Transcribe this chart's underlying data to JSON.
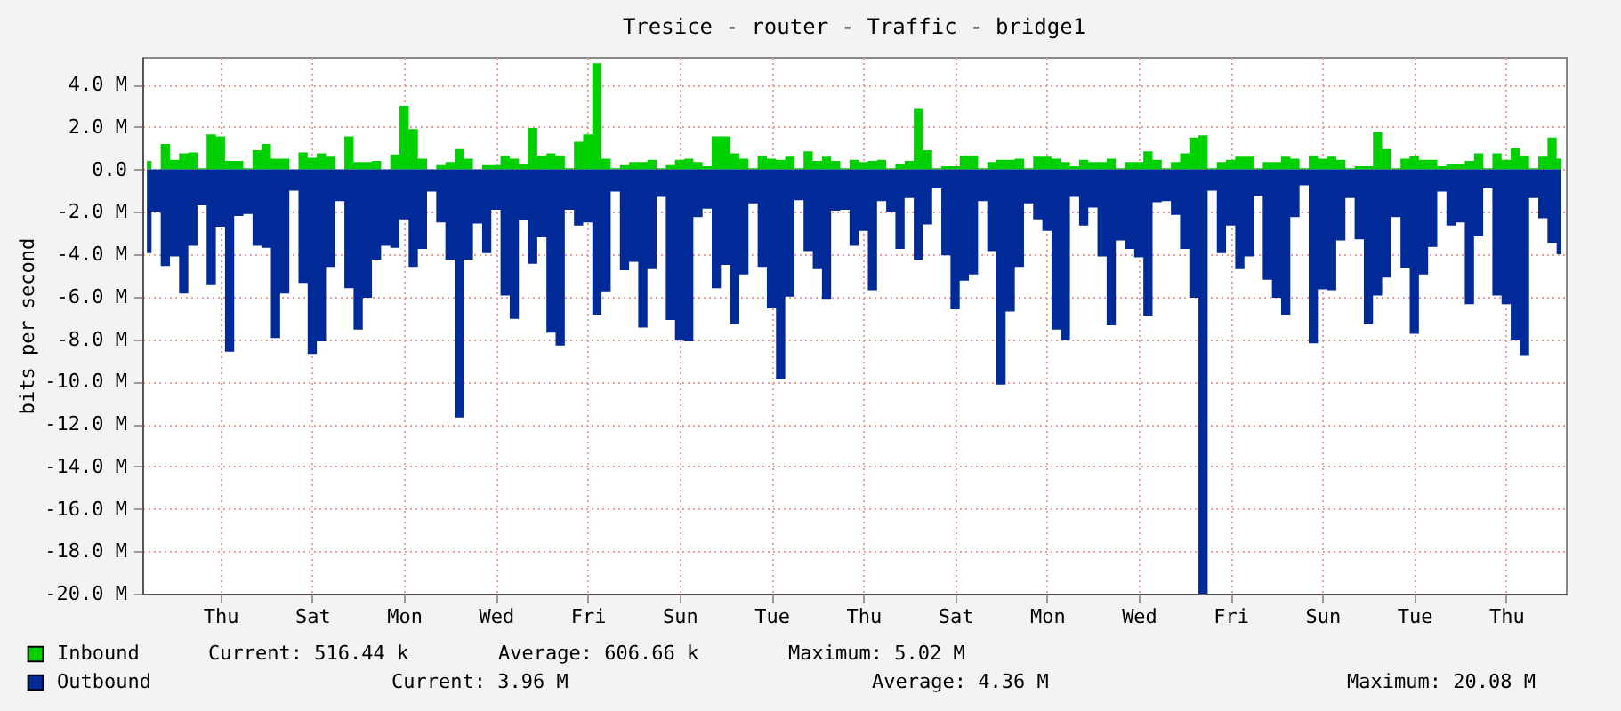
{
  "chart_data": {
    "type": "area",
    "title": "Tresice - router - Traffic - bridge1",
    "ylabel": "bits per second",
    "categories": [
      null,
      null,
      null,
      null,
      null,
      null,
      null,
      null,
      "Thu",
      null,
      null,
      null,
      null,
      null,
      null,
      null,
      null,
      null,
      "Sat",
      null,
      null,
      null,
      null,
      null,
      null,
      null,
      null,
      null,
      "Mon",
      null,
      null,
      null,
      null,
      null,
      null,
      null,
      null,
      null,
      "Wed",
      null,
      null,
      null,
      null,
      null,
      null,
      null,
      null,
      null,
      "Fri",
      null,
      null,
      null,
      null,
      null,
      null,
      null,
      null,
      null,
      "Sun",
      null,
      null,
      null,
      null,
      null,
      null,
      null,
      null,
      null,
      "Tue",
      null,
      null,
      null,
      null,
      null,
      null,
      null,
      null,
      null,
      "Thu",
      null,
      null,
      null,
      null,
      null,
      null,
      null,
      null,
      null,
      "Sat",
      null,
      null,
      null,
      null,
      null,
      null,
      null,
      null,
      null,
      "Mon",
      null,
      null,
      null,
      null,
      null,
      null,
      null,
      null,
      null,
      "Wed",
      null,
      null,
      null,
      null,
      null,
      null,
      null,
      null,
      null,
      "Fri",
      null,
      null,
      null,
      null,
      null,
      null,
      null,
      null,
      null,
      "Sun",
      null,
      null,
      null,
      null,
      null,
      null,
      null,
      null,
      null,
      "Tue",
      null,
      null,
      null,
      null,
      null,
      null,
      null,
      null,
      null,
      "Thu",
      null,
      null,
      null,
      null,
      null,
      null
    ],
    "series": [
      {
        "name": "Inbound",
        "color": "#00cf00",
        "values": [
          0.4,
          0,
          1.2,
          0.45,
          0.75,
          0.8,
          0.05,
          1.65,
          1.55,
          0.4,
          0.4,
          0.05,
          0.9,
          1.2,
          0.5,
          0.5,
          0,
          0.8,
          0.55,
          0.75,
          0.6,
          0,
          1.55,
          0.35,
          0.35,
          0.4,
          0,
          0.7,
          3.0,
          1.9,
          0.5,
          0,
          0.2,
          0.35,
          0.95,
          0.5,
          0,
          0.2,
          0.2,
          0.65,
          0.5,
          0.25,
          1.95,
          0.65,
          0.75,
          0.65,
          0.05,
          1.3,
          1.65,
          5.0,
          0.5,
          0.05,
          0.2,
          0.35,
          0.35,
          0.45,
          0.05,
          0.2,
          0.45,
          0.5,
          0.35,
          0.15,
          1.55,
          1.55,
          0.75,
          0.5,
          0.05,
          0.65,
          0.5,
          0.45,
          0.6,
          0.05,
          0.85,
          0.4,
          0.6,
          0.4,
          0.05,
          0.45,
          0.35,
          0.4,
          0.45,
          0.05,
          0.25,
          0.4,
          2.85,
          0.9,
          0.05,
          0.15,
          0.15,
          0.65,
          0.65,
          0.05,
          0.35,
          0.45,
          0.45,
          0.5,
          0.05,
          0.6,
          0.6,
          0.5,
          0.35,
          0.15,
          0.45,
          0.35,
          0.35,
          0.5,
          0.05,
          0.35,
          0.35,
          0.85,
          0.45,
          0.05,
          0.35,
          0.75,
          1.5,
          1.6,
          0.05,
          0.35,
          0.45,
          0.6,
          0.6,
          0.05,
          0.35,
          0.35,
          0.6,
          0.5,
          0.05,
          0.65,
          0.5,
          0.6,
          0.45,
          0.05,
          0.15,
          0.15,
          1.75,
          0.95,
          0.05,
          0.5,
          0.65,
          0.45,
          0.45,
          0.15,
          0.25,
          0.25,
          0.4,
          0.75,
          0.05,
          0.75,
          0.45,
          1.0,
          0.65,
          0.05,
          0.6,
          1.5,
          0.5
        ]
      },
      {
        "name": "Outbound",
        "color": "#002a97",
        "values": [
          -3.95,
          -2.0,
          -4.55,
          -4.1,
          -5.85,
          -3.6,
          -1.7,
          -5.45,
          -2.7,
          -8.6,
          -2.2,
          -2.1,
          -3.6,
          -3.7,
          -7.95,
          -5.85,
          -1.0,
          -5.35,
          -8.7,
          -8.1,
          -4.6,
          -1.5,
          -5.6,
          -7.55,
          -6.05,
          -4.25,
          -3.6,
          -3.7,
          -2.35,
          -4.6,
          -3.75,
          -1.05,
          -2.5,
          -4.25,
          -11.7,
          -4.25,
          -2.55,
          -3.95,
          -1.9,
          -5.95,
          -7.05,
          -2.4,
          -4.45,
          -3.2,
          -7.7,
          -8.3,
          -1.9,
          -2.65,
          -2.5,
          -6.85,
          -5.75,
          -1.05,
          -4.75,
          -4.35,
          -7.45,
          -4.7,
          -1.3,
          -7.1,
          -8.05,
          -8.1,
          -2.25,
          -1.85,
          -5.6,
          -4.5,
          -7.3,
          -4.95,
          -1.6,
          -4.6,
          -6.55,
          -9.9,
          -6.0,
          -1.45,
          -3.85,
          -4.7,
          -6.1,
          -1.95,
          -1.9,
          -3.6,
          -2.9,
          -5.7,
          -1.5,
          -2.0,
          -3.75,
          -1.35,
          -4.25,
          -2.6,
          -0.9,
          -4.05,
          -6.6,
          -5.25,
          -4.95,
          -1.5,
          -3.85,
          -10.15,
          -6.7,
          -4.6,
          -1.6,
          -2.35,
          -2.9,
          -7.55,
          -8.05,
          -1.3,
          -2.65,
          -1.8,
          -4.1,
          -7.35,
          -3.35,
          -3.75,
          -4.15,
          -6.9,
          -1.55,
          -1.5,
          -2.15,
          -3.75,
          -6.05,
          -20.0,
          -1.0,
          -3.95,
          -2.65,
          -4.7,
          -4.1,
          -1.25,
          -5.2,
          -6.05,
          -6.85,
          -2.25,
          -0.75,
          -8.2,
          -5.65,
          -5.7,
          -3.35,
          -1.35,
          -3.3,
          -7.3,
          -5.95,
          -5.1,
          -2.25,
          -4.65,
          -7.75,
          -4.95,
          -3.65,
          -1.05,
          -2.65,
          -2.5,
          -6.35,
          -3.15,
          -0.9,
          -5.95,
          -6.35,
          -8.05,
          -8.75,
          -1.35,
          -2.3,
          -3.45,
          -4.0
        ]
      }
    ],
    "ylim": [
      -20,
      5.3
    ],
    "yticks": [
      {
        "value": 4,
        "label": "4.0 M"
      },
      {
        "value": 2,
        "label": "2.0 M"
      },
      {
        "value": 0,
        "label": "0.0"
      },
      {
        "value": -2,
        "label": "-2.0 M"
      },
      {
        "value": -4,
        "label": "-4.0 M"
      },
      {
        "value": -6,
        "label": "-6.0 M"
      },
      {
        "value": -8,
        "label": "-8.0 M"
      },
      {
        "value": -10,
        "label": "-10.0 M"
      },
      {
        "value": -12,
        "label": "-12.0 M"
      },
      {
        "value": -14,
        "label": "-14.0 M"
      },
      {
        "value": -16,
        "label": "-16.0 M"
      },
      {
        "value": -18,
        "label": "-18.0 M"
      },
      {
        "value": -20,
        "label": "-20.0 M"
      }
    ],
    "grid": true,
    "legend": "bottom",
    "annotations": [
      "Current: 516.44 k",
      "Average: 606.66 k",
      "Maximum: 5.02 M",
      "Current: 3.96 M",
      "Average: 4.36 M",
      "Maximum: 20.08 M"
    ]
  }
}
